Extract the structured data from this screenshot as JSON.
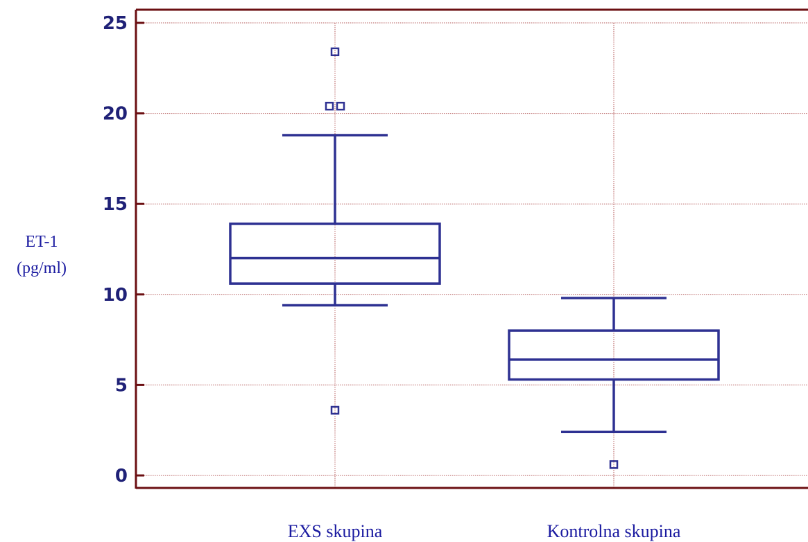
{
  "chart_data": {
    "type": "box",
    "ylabel_line1": "ET-1",
    "ylabel_line2": "(pg/ml)",
    "ylim": [
      0,
      25
    ],
    "yticks": [
      0,
      5,
      10,
      15,
      20,
      25
    ],
    "grid": true,
    "categories": [
      "EXS skupina",
      "Kontrolna skupina"
    ],
    "boxes": [
      {
        "category": "EXS skupina",
        "whisker_low": 9.4,
        "q1": 10.6,
        "median": 12.0,
        "q3": 13.9,
        "whisker_high": 18.8,
        "outliers": [
          23.4,
          20.4,
          20.4,
          3.6
        ]
      },
      {
        "category": "Kontrolna skupina",
        "whisker_low": 2.4,
        "q1": 5.3,
        "median": 6.4,
        "q3": 8.0,
        "whisker_high": 9.8,
        "outliers": [
          0.6
        ]
      }
    ],
    "colors": {
      "box": "#2e3192",
      "axis": "#6b0f12",
      "grid": "#b45a5a",
      "tick_label": "#1f2177"
    }
  }
}
